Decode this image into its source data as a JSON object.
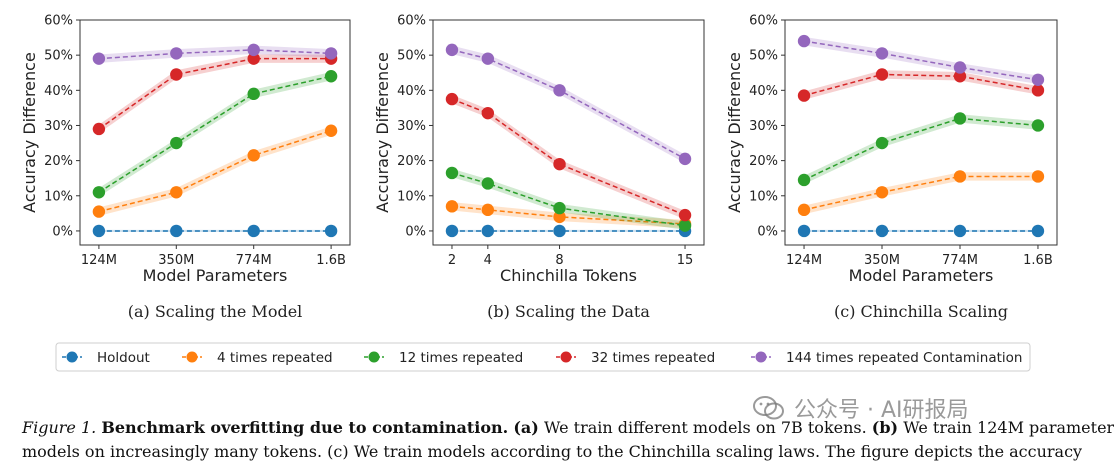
{
  "chart_data": [
    {
      "type": "line",
      "subcaption": "(a) Scaling the Model",
      "xlabel": "Model Parameters",
      "ylabel": "Accuracy Difference",
      "ylim": [
        -0.04,
        0.6
      ],
      "yticks": [
        "0%",
        "10%",
        "20%",
        "30%",
        "40%",
        "50%",
        "60%"
      ],
      "x": [
        "124M",
        "350M",
        "774M",
        "1.6B"
      ],
      "series": [
        {
          "name": "Holdout",
          "values": [
            0.0,
            0.0,
            0.0,
            0.0
          ]
        },
        {
          "name": "4 times repeated",
          "values": [
            0.055,
            0.11,
            0.215,
            0.285
          ]
        },
        {
          "name": "12 times repeated",
          "values": [
            0.11,
            0.25,
            0.39,
            0.44
          ]
        },
        {
          "name": "32 times repeated",
          "values": [
            0.29,
            0.445,
            0.49,
            0.49
          ]
        },
        {
          "name": "144 times repeated Contamination",
          "values": [
            0.49,
            0.505,
            0.515,
            0.505
          ]
        }
      ]
    },
    {
      "type": "line",
      "subcaption": "(b) Scaling the Data",
      "xlabel": "Chinchilla Tokens",
      "ylabel": "Accuracy Difference",
      "ylim": [
        -0.04,
        0.6
      ],
      "yticks": [
        "0%",
        "10%",
        "20%",
        "30%",
        "40%",
        "50%",
        "60%"
      ],
      "x": [
        2,
        4,
        8,
        15
      ],
      "series": [
        {
          "name": "Holdout",
          "values": [
            0.0,
            0.0,
            0.0,
            0.0
          ]
        },
        {
          "name": "4 times repeated",
          "values": [
            0.07,
            0.06,
            0.04,
            0.02
          ]
        },
        {
          "name": "12 times repeated",
          "values": [
            0.165,
            0.135,
            0.065,
            0.015
          ]
        },
        {
          "name": "32 times repeated",
          "values": [
            0.375,
            0.335,
            0.19,
            0.045
          ]
        },
        {
          "name": "144 times repeated Contamination",
          "values": [
            0.515,
            0.49,
            0.4,
            0.205
          ]
        }
      ]
    },
    {
      "type": "line",
      "subcaption": "(c) Chinchilla Scaling",
      "xlabel": "Model Parameters",
      "ylabel": "Accuracy Difference",
      "ylim": [
        -0.04,
        0.6
      ],
      "yticks": [
        "0%",
        "10%",
        "20%",
        "30%",
        "40%",
        "50%",
        "60%"
      ],
      "x": [
        "124M",
        "350M",
        "774M",
        "1.6B"
      ],
      "series": [
        {
          "name": "Holdout",
          "values": [
            0.0,
            0.0,
            0.0,
            0.0
          ]
        },
        {
          "name": "4 times repeated",
          "values": [
            0.06,
            0.11,
            0.155,
            0.155
          ]
        },
        {
          "name": "12 times repeated",
          "values": [
            0.145,
            0.25,
            0.32,
            0.3
          ]
        },
        {
          "name": "32 times repeated",
          "values": [
            0.385,
            0.445,
            0.44,
            0.4
          ]
        },
        {
          "name": "144 times repeated Contamination",
          "values": [
            0.54,
            0.505,
            0.465,
            0.43
          ]
        }
      ]
    }
  ],
  "legend": {
    "entries": [
      "Holdout",
      "4 times repeated",
      "12 times repeated",
      "32 times repeated",
      "144 times repeated Contamination"
    ]
  },
  "colors": [
    "#1f77b4",
    "#ff7f0e",
    "#2ca02c",
    "#d62728",
    "#9467bd"
  ],
  "caption": {
    "label": "Figure 1.",
    "title": "Benchmark overfitting due to contamination.",
    "part_a_tag": "(a)",
    "part_a_text": " We train different models on 7B tokens. ",
    "part_b_tag": "(b)",
    "part_b_text": " We train 124M parameter",
    "line2": "models on increasingly many tokens. (c) We train models according to the Chinchilla scaling laws. The figure depicts the accuracy"
  },
  "watermark": {
    "text": "公众号 · AI研报局",
    "icon": "wechat-icon"
  }
}
